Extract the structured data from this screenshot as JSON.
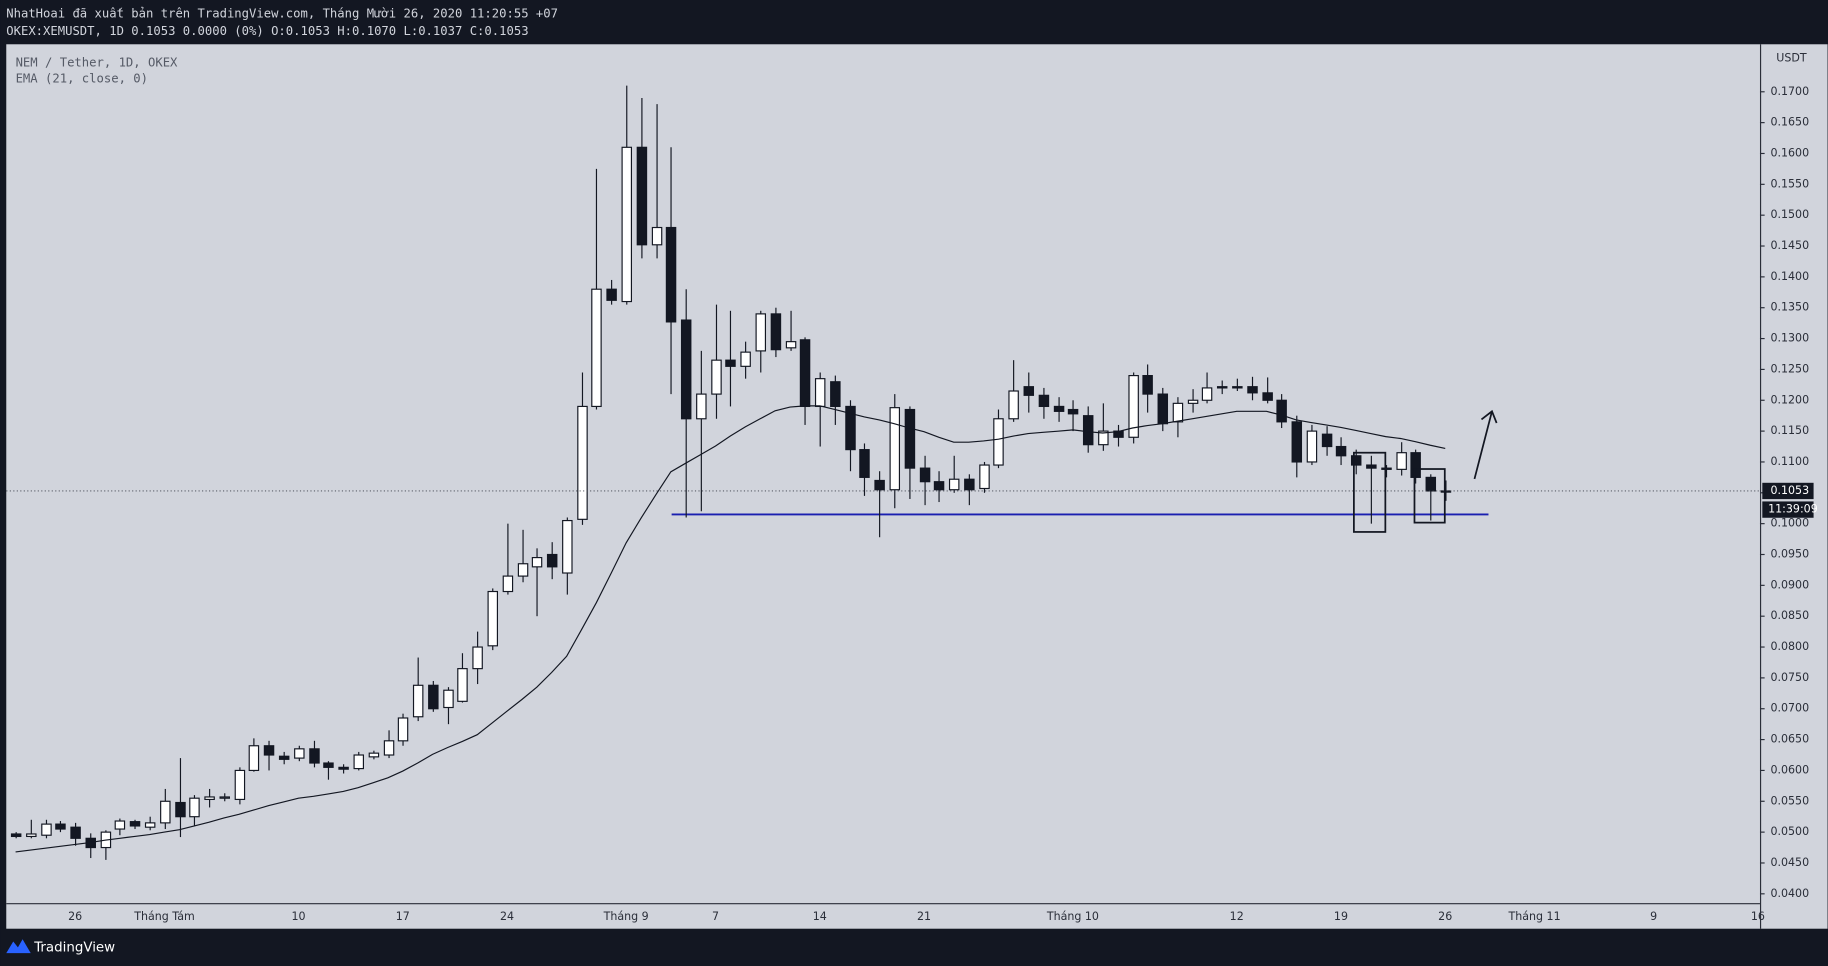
{
  "header": {
    "published": "NhatHoai đã xuất bản trên TradingView.com, Tháng Mười 26, 2020 11:20:55 +07",
    "symbol_line": "OKEX:XEMUSDT, 1D 0.1053 0.0000 (0%) O:0.1053 H:0.1070 L:0.1037 C:0.1053"
  },
  "countdown": "11:39:09",
  "footer": {
    "brand": "TradingView"
  },
  "chart_data": {
    "type": "candlestick",
    "title": "NEM / Tether, 1D, OKEX",
    "y_label": "USDT",
    "candle_colors": {
      "up": "#ffffff",
      "down": "#131722",
      "border": "#131722"
    },
    "categories": [
      null,
      null,
      null,
      null,
      "26",
      null,
      null,
      null,
      null,
      null,
      "Tháng Tám",
      null,
      null,
      null,
      null,
      null,
      null,
      null,
      null,
      "10",
      null,
      null,
      null,
      null,
      null,
      null,
      "17",
      null,
      null,
      null,
      null,
      null,
      null,
      "24",
      null,
      null,
      null,
      null,
      null,
      null,
      null,
      "Tháng 9",
      null,
      null,
      null,
      null,
      null,
      "7",
      null,
      null,
      null,
      null,
      null,
      null,
      "14",
      null,
      null,
      null,
      null,
      null,
      null,
      "21",
      null,
      null,
      null,
      null,
      null,
      null,
      null,
      null,
      null,
      "Tháng 10",
      null,
      null,
      null,
      null,
      null,
      null,
      null,
      null,
      null,
      null,
      "12",
      null,
      null,
      null,
      null,
      null,
      null,
      "19",
      null,
      null,
      null,
      null,
      null,
      null,
      "26",
      null,
      null,
      null,
      null,
      null,
      "Tháng 11",
      null,
      null,
      null,
      null,
      null,
      null,
      null,
      "9",
      null,
      null,
      null,
      null,
      null,
      null,
      "16"
    ],
    "open": [
      0.0497,
      0.0493,
      0.0495,
      0.0513,
      0.0508,
      0.049,
      0.0475,
      0.0505,
      0.0517,
      0.0508,
      0.0515,
      0.0548,
      0.0525,
      0.0553,
      0.0555,
      0.0553,
      0.06,
      0.064,
      0.0623,
      0.062,
      0.0635,
      0.0612,
      0.0605,
      0.0603,
      0.0622,
      0.0625,
      0.0648,
      0.0687,
      0.0738,
      0.0702,
      0.0712,
      0.0765,
      0.0802,
      0.089,
      0.0915,
      0.093,
      0.095,
      0.092,
      0.1007,
      0.119,
      0.138,
      0.136,
      0.161,
      0.1452,
      0.148,
      0.133,
      0.117,
      0.121,
      0.1265,
      0.1255,
      0.128,
      0.134,
      0.1285,
      0.1298,
      0.119,
      0.123,
      0.119,
      0.112,
      0.107,
      0.1055,
      0.1185,
      0.109,
      0.1068,
      0.1055,
      0.1072,
      0.1057,
      0.1095,
      0.117,
      0.1222,
      0.1208,
      0.119,
      0.1185,
      0.1175,
      0.1128,
      0.115,
      0.114,
      0.124,
      0.121,
      0.1165,
      0.1195,
      0.12,
      0.1222,
      0.1222,
      0.1222,
      0.1212,
      0.12,
      0.1165,
      0.11,
      0.1145,
      0.1125,
      0.111,
      0.1095,
      0.109,
      0.1088,
      0.1115,
      0.1075,
      0.1053,
      null,
      null,
      null,
      null,
      null,
      null,
      null,
      null,
      null,
      null,
      null,
      null,
      null,
      null,
      null,
      null,
      null,
      null,
      null,
      null,
      null
    ],
    "high": [
      0.05,
      0.052,
      0.052,
      0.0518,
      0.0515,
      0.0498,
      0.0503,
      0.0522,
      0.052,
      0.0525,
      0.057,
      0.062,
      0.056,
      0.057,
      0.0563,
      0.0605,
      0.0652,
      0.0648,
      0.063,
      0.064,
      0.0648,
      0.0615,
      0.061,
      0.063,
      0.0632,
      0.0665,
      0.0692,
      0.0783,
      0.0745,
      0.0735,
      0.079,
      0.0825,
      0.0895,
      0.1,
      0.099,
      0.096,
      0.097,
      0.101,
      0.1245,
      0.1575,
      0.1395,
      0.171,
      0.169,
      0.168,
      0.161,
      0.138,
      0.128,
      0.1355,
      0.1345,
      0.1295,
      0.1345,
      0.135,
      0.1345,
      0.1302,
      0.1245,
      0.124,
      0.12,
      0.113,
      0.1085,
      0.121,
      0.119,
      0.111,
      0.1085,
      0.111,
      0.108,
      0.11,
      0.1185,
      0.1265,
      0.1245,
      0.122,
      0.1205,
      0.12,
      0.119,
      0.1195,
      0.116,
      0.1245,
      0.1258,
      0.122,
      0.1205,
      0.1218,
      0.1245,
      0.1232,
      0.1235,
      0.1238,
      0.1237,
      0.121,
      0.1175,
      0.116,
      0.1158,
      0.114,
      0.112,
      0.111,
      0.1095,
      0.1132,
      0.112,
      0.108,
      0.107,
      null,
      null,
      null,
      null,
      null,
      null,
      null,
      null,
      null,
      null,
      null,
      null,
      null,
      null,
      null,
      null,
      null,
      null,
      null,
      null,
      null
    ],
    "low": [
      0.049,
      0.049,
      0.049,
      0.05,
      0.0478,
      0.0458,
      0.0455,
      0.0495,
      0.0505,
      0.0503,
      0.0505,
      0.0492,
      0.051,
      0.054,
      0.055,
      0.0545,
      0.0598,
      0.06,
      0.061,
      0.0615,
      0.0605,
      0.0585,
      0.0595,
      0.06,
      0.0618,
      0.062,
      0.064,
      0.068,
      0.0695,
      0.0675,
      0.071,
      0.074,
      0.0795,
      0.0885,
      0.0905,
      0.085,
      0.091,
      0.0885,
      0.0998,
      0.1185,
      0.1355,
      0.1355,
      0.143,
      0.143,
      0.121,
      0.101,
      0.102,
      0.117,
      0.119,
      0.1235,
      0.1245,
      0.127,
      0.128,
      0.116,
      0.1125,
      0.116,
      0.1085,
      0.1045,
      0.0978,
      0.1025,
      0.104,
      0.103,
      0.1035,
      0.105,
      0.103,
      0.105,
      0.109,
      0.1165,
      0.118,
      0.117,
      0.1165,
      0.115,
      0.1115,
      0.1118,
      0.1125,
      0.113,
      0.118,
      0.115,
      0.114,
      0.118,
      0.1195,
      0.121,
      0.1215,
      0.12,
      0.1195,
      0.1155,
      0.1075,
      0.1095,
      0.111,
      0.1095,
      0.108,
      0.1,
      0.1075,
      0.1078,
      0.1065,
      0.1005,
      0.1037,
      null,
      null,
      null,
      null,
      null,
      null,
      null,
      null,
      null,
      null,
      null,
      null,
      null,
      null,
      null,
      null,
      null,
      null,
      null,
      null,
      null
    ],
    "close": [
      0.0493,
      0.0497,
      0.0513,
      0.0505,
      0.049,
      0.0475,
      0.05,
      0.0518,
      0.051,
      0.0515,
      0.055,
      0.0525,
      0.0555,
      0.0557,
      0.0557,
      0.06,
      0.064,
      0.0625,
      0.0618,
      0.0635,
      0.0612,
      0.0605,
      0.0602,
      0.0625,
      0.0628,
      0.0648,
      0.0685,
      0.0738,
      0.07,
      0.073,
      0.0765,
      0.08,
      0.089,
      0.0915,
      0.0935,
      0.0945,
      0.093,
      0.1005,
      0.119,
      0.138,
      0.1362,
      0.161,
      0.1452,
      0.148,
      0.1327,
      0.117,
      0.121,
      0.1265,
      0.1255,
      0.1278,
      0.134,
      0.1282,
      0.1295,
      0.119,
      0.1235,
      0.119,
      0.112,
      0.1075,
      0.1055,
      0.1188,
      0.109,
      0.1068,
      0.1055,
      0.1072,
      0.1055,
      0.1095,
      0.117,
      0.1215,
      0.1208,
      0.119,
      0.1182,
      0.1178,
      0.1128,
      0.115,
      0.114,
      0.124,
      0.121,
      0.1162,
      0.1195,
      0.12,
      0.122,
      0.122,
      0.122,
      0.1212,
      0.12,
      0.1165,
      0.11,
      0.115,
      0.1125,
      0.111,
      0.1095,
      0.109,
      0.1088,
      0.1115,
      0.1075,
      0.1053,
      0.1053,
      null,
      null,
      null,
      null,
      null,
      null,
      null,
      null,
      null,
      null,
      null,
      null,
      null,
      null,
      null,
      null,
      null,
      null,
      null,
      null,
      null
    ],
    "series": [
      {
        "name": "EMA (21, close, 0)",
        "color": "#131722",
        "values": [
          0.0468,
          0.0471,
          0.0474,
          0.0477,
          0.048,
          0.0483,
          0.0487,
          0.049,
          0.0493,
          0.0496,
          0.05,
          0.0504,
          0.051,
          0.0516,
          0.0523,
          0.0529,
          0.0536,
          0.0543,
          0.0549,
          0.0555,
          0.0558,
          0.0562,
          0.0566,
          0.0572,
          0.058,
          0.0588,
          0.0599,
          0.0612,
          0.0626,
          0.0637,
          0.0647,
          0.0658,
          0.0677,
          0.0696,
          0.0715,
          0.0735,
          0.0759,
          0.0785,
          0.0828,
          0.0872,
          0.092,
          0.0969,
          0.1009,
          0.1047,
          0.1084,
          0.1098,
          0.1112,
          0.1126,
          0.1142,
          0.1157,
          0.117,
          0.1183,
          0.1189,
          0.1191,
          0.1191,
          0.1185,
          0.1179,
          0.1173,
          0.1168,
          0.1162,
          0.1155,
          0.1149,
          0.114,
          0.1132,
          0.1132,
          0.1134,
          0.1137,
          0.1142,
          0.1146,
          0.1148,
          0.115,
          0.1152,
          0.1149,
          0.1147,
          0.1149,
          0.1155,
          0.1159,
          0.1162,
          0.1166,
          0.117,
          0.1174,
          0.1178,
          0.1182,
          0.1182,
          0.1182,
          0.1176,
          0.1168,
          0.1164,
          0.116,
          0.1156,
          0.1151,
          0.1146,
          0.1141,
          0.1138,
          0.1133,
          0.1127,
          0.1122,
          null,
          null,
          null,
          null,
          null,
          null,
          null,
          null,
          null,
          null,
          null,
          null,
          null,
          null,
          null,
          null,
          null,
          null,
          null,
          null,
          null
        ]
      }
    ],
    "hline": {
      "value": 0.1015,
      "color": "#1a1fb0"
    },
    "ylim": [
      0.0385,
      0.1777
    ],
    "yticks": [
      {
        "value": 0.04,
        "label": "0.0400"
      },
      {
        "value": 0.045,
        "label": "0.0450"
      },
      {
        "value": 0.05,
        "label": "0.0500"
      },
      {
        "value": 0.055,
        "label": "0.0550"
      },
      {
        "value": 0.06,
        "label": "0.0600"
      },
      {
        "value": 0.065,
        "label": "0.0650"
      },
      {
        "value": 0.07,
        "label": "0.0700"
      },
      {
        "value": 0.075,
        "label": "0.0750"
      },
      {
        "value": 0.08,
        "label": "0.0800"
      },
      {
        "value": 0.085,
        "label": "0.0850"
      },
      {
        "value": 0.09,
        "label": "0.0900"
      },
      {
        "value": 0.095,
        "label": "0.0950"
      },
      {
        "value": 0.1,
        "label": "0.1000"
      },
      {
        "value": 0.105,
        "label": "0.1050"
      },
      {
        "value": 0.11,
        "label": "0.1100"
      },
      {
        "value": 0.115,
        "label": "0.1150"
      },
      {
        "value": 0.12,
        "label": "0.1200"
      },
      {
        "value": 0.125,
        "label": "0.1250"
      },
      {
        "value": 0.13,
        "label": "0.1300"
      },
      {
        "value": 0.135,
        "label": "0.1350"
      },
      {
        "value": 0.14,
        "label": "0.1400"
      },
      {
        "value": 0.145,
        "label": "0.1450"
      },
      {
        "value": 0.15,
        "label": "0.1500"
      },
      {
        "value": 0.155,
        "label": "0.1550"
      },
      {
        "value": 0.16,
        "label": "0.1600"
      },
      {
        "value": 0.165,
        "label": "0.1650"
      },
      {
        "value": 0.17,
        "label": "0.1700"
      }
    ],
    "grid": false
  }
}
